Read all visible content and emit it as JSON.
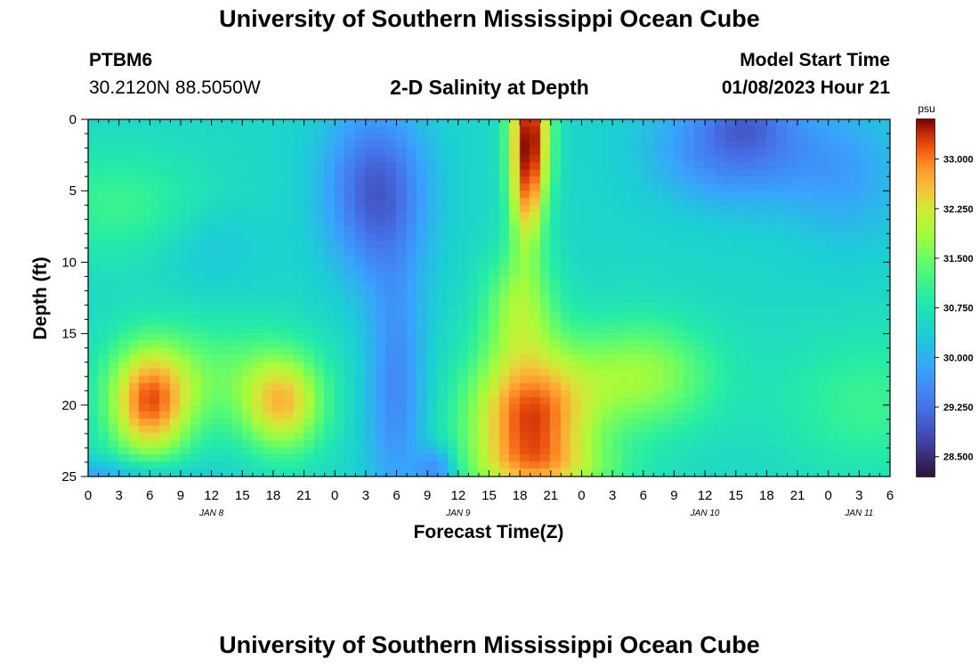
{
  "header": {
    "title": "University of Southern Mississippi Ocean Cube",
    "station_id": "PTBM6",
    "station_coords": "30.2120N  88.5050W",
    "subtitle": "2-D Salinity at Depth",
    "model_start_label": "Model Start Time",
    "model_start_value": "01/08/2023 Hour 21"
  },
  "footer": {
    "title": "University of Southern Mississippi Ocean Cube"
  },
  "colors": {
    "background": "#ffffff",
    "axis": "#000000"
  },
  "chart_data": {
    "type": "heatmap",
    "title": "2-D Salinity at Depth",
    "xlabel": "Forecast Time(Z)",
    "ylabel": "Depth (ft)",
    "x_unit": "hours since Jan 8 00Z",
    "xlim": [
      0,
      78
    ],
    "ylim": [
      0,
      25
    ],
    "y_inverted": true,
    "x_tick_values": [
      0,
      3,
      6,
      9,
      12,
      15,
      18,
      21,
      24,
      27,
      30,
      33,
      36,
      39,
      42,
      45,
      48,
      51,
      54,
      57,
      60,
      63,
      66,
      69,
      72,
      75,
      78
    ],
    "x_tick_labels": [
      "0",
      "3",
      "6",
      "9",
      "12",
      "15",
      "18",
      "21",
      "0",
      "3",
      "6",
      "9",
      "12",
      "15",
      "18",
      "21",
      "0",
      "3",
      "6",
      "9",
      "12",
      "15",
      "18",
      "21",
      "0",
      "3",
      "6"
    ],
    "date_labels": [
      {
        "text": "JAN 8",
        "x": 12
      },
      {
        "text": "JAN 9",
        "x": 36
      },
      {
        "text": "JAN 10",
        "x": 60
      },
      {
        "text": "JAN 11",
        "x": 75
      }
    ],
    "y_tick_values": [
      0,
      5,
      10,
      15,
      20,
      25
    ],
    "y_tick_labels": [
      "0",
      "5",
      "10",
      "15",
      "20",
      "25"
    ],
    "colorbar": {
      "unit": "psu",
      "min": 28.2,
      "max": 33.6,
      "tick_values": [
        28.5,
        29.25,
        30.0,
        30.75,
        31.5,
        32.25,
        33.0
      ],
      "tick_labels": [
        "28.500",
        "29.250",
        "30.000",
        "30.750",
        "31.500",
        "32.250",
        "33.000"
      ]
    },
    "grid": {
      "nx": 78,
      "ny": 50,
      "x_step_hours": 1,
      "y_step_ft": 0.5,
      "background_psu": 30.5,
      "features": [
        {
          "name": "left-surface-high",
          "t": 3,
          "d": 6,
          "st": 9,
          "sd": 4,
          "amp": 0.6
        },
        {
          "name": "left-deep-high-a",
          "t": 6,
          "d": 20,
          "st": 4,
          "sd": 4,
          "amp": 2.3
        },
        {
          "name": "left-deep-high-b",
          "t": 19,
          "d": 20,
          "st": 4,
          "sd": 3.5,
          "amp": 1.8
        },
        {
          "name": "left-middepth-high",
          "t": 12,
          "d": 18,
          "st": 9,
          "sd": 4,
          "amp": 0.8
        },
        {
          "name": "left-mid-low",
          "t": 12,
          "d": 9,
          "st": 5,
          "sd": 3,
          "amp": -0.3
        },
        {
          "name": "central-fresh-upper",
          "t": 28,
          "d": 5,
          "st": 5,
          "sd": 6,
          "amp": -1.5
        },
        {
          "name": "central-fresh-deep",
          "t": 30,
          "d": 19,
          "st": 3,
          "sd": 9,
          "amp": -1.0
        },
        {
          "name": "central-fresh-bottom",
          "t": 34,
          "d": 24.5,
          "st": 2,
          "sd": 1.5,
          "amp": -1.0
        },
        {
          "name": "front-near-surface",
          "t": 43,
          "d": 1,
          "st": 2,
          "sd": 6,
          "amp": 3.0
        },
        {
          "name": "front-spike",
          "t": 42.5,
          "d": 6,
          "st": 1.5,
          "sd": 4,
          "amp": 0.8
        },
        {
          "name": "right-salty-core",
          "t": 43,
          "d": 21,
          "st": 6,
          "sd": 5,
          "amp": 2.7
        },
        {
          "name": "right-salty-bottom",
          "t": 45,
          "d": 24.5,
          "st": 8,
          "sd": 2,
          "amp": 0.8
        },
        {
          "name": "right-salty-upper",
          "t": 42,
          "d": 13,
          "st": 3.5,
          "sd": 4,
          "amp": 1.2
        },
        {
          "name": "right-mid-tail",
          "t": 54,
          "d": 18,
          "st": 7,
          "sd": 4,
          "amp": 1.3
        },
        {
          "name": "surface-fresh-east",
          "t": 63,
          "d": 2,
          "st": 8,
          "sd": 4,
          "amp": -1.2
        },
        {
          "name": "surface-fresh-min",
          "t": 64,
          "d": 0,
          "st": 4,
          "sd": 2,
          "amp": -0.5
        },
        {
          "name": "surface-fresh-far",
          "t": 74,
          "d": 4,
          "st": 6,
          "sd": 5,
          "amp": -0.6
        },
        {
          "name": "deep-east-high",
          "t": 76,
          "d": 20,
          "st": 9,
          "sd": 5,
          "amp": 0.6
        }
      ],
      "edge_shadow": {
        "t": 2,
        "t_spread": 9,
        "depth": 25,
        "d_spread": 1.2,
        "amp": -0.7
      }
    }
  }
}
